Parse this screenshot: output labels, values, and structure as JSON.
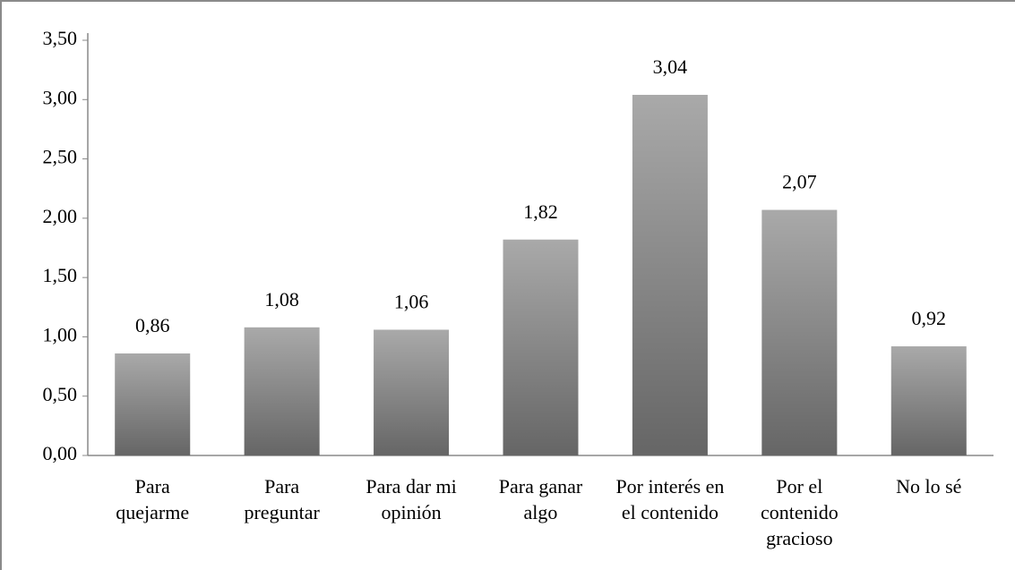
{
  "chart_data": {
    "type": "bar",
    "categories": [
      "Para quejarme",
      "Para preguntar",
      "Para dar mi opinión",
      "Para ganar algo",
      "Por interés en el contenido",
      "Por el contenido gracioso",
      "No lo sé"
    ],
    "values": [
      0.86,
      1.08,
      1.06,
      1.82,
      3.04,
      2.07,
      0.92
    ],
    "value_labels": [
      "0,86",
      "1,08",
      "1,06",
      "1,82",
      "3,04",
      "2,07",
      "0,92"
    ],
    "color": "#a9a9a9",
    "ylim": [
      0,
      3.5
    ],
    "yticks": [
      {
        "value": 0,
        "label": "0,00"
      },
      {
        "value": 0.5,
        "label": "0,50"
      },
      {
        "value": 1,
        "label": "1,00"
      },
      {
        "value": 1.5,
        "label": "1,50"
      },
      {
        "value": 2,
        "label": "2,00"
      },
      {
        "value": 2.5,
        "label": "2,50"
      },
      {
        "value": 3,
        "label": "3,00"
      },
      {
        "value": 3.5,
        "label": "3,50"
      }
    ],
    "grid": false
  }
}
